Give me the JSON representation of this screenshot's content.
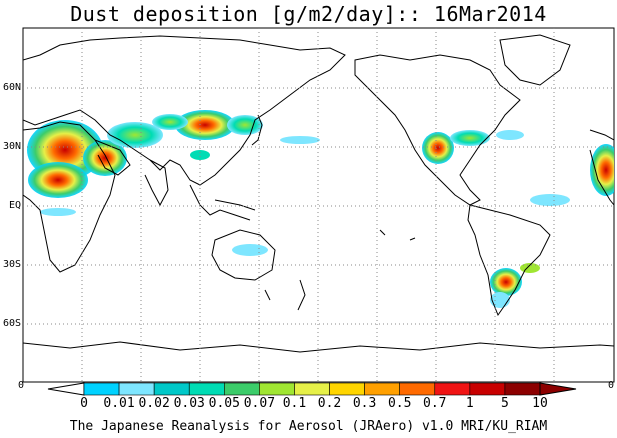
{
  "title": "Dust deposition [g/m2/day]:: 16Mar2014",
  "footer": "The Japanese Reanalysis for Aerosol (JRAero) v1.0 MRI/KU_RIAM",
  "lat_labels": [
    "60N",
    "30N",
    "EQ",
    "30S",
    "60S"
  ],
  "lon_labels": [
    "0",
    "0"
  ],
  "colorbar": {
    "tick_labels": [
      "0",
      "0.01",
      "0.02",
      "0.03",
      "0.05",
      "0.07",
      "0.1",
      "0.2",
      "0.3",
      "0.5",
      "0.7",
      "1",
      "5",
      "10"
    ],
    "colors": [
      "#ffffff",
      "#00d2ff",
      "#7ee6ff",
      "#00c8c8",
      "#00dcb4",
      "#3ccc6a",
      "#a0e632",
      "#e6f048",
      "#ffd500",
      "#ffa000",
      "#ff6a00",
      "#f01414",
      "#c80000",
      "#8c0000",
      "#8c0000"
    ]
  },
  "map": {
    "projection": "lon-lat, centered on 180",
    "grid": "dotted"
  }
}
